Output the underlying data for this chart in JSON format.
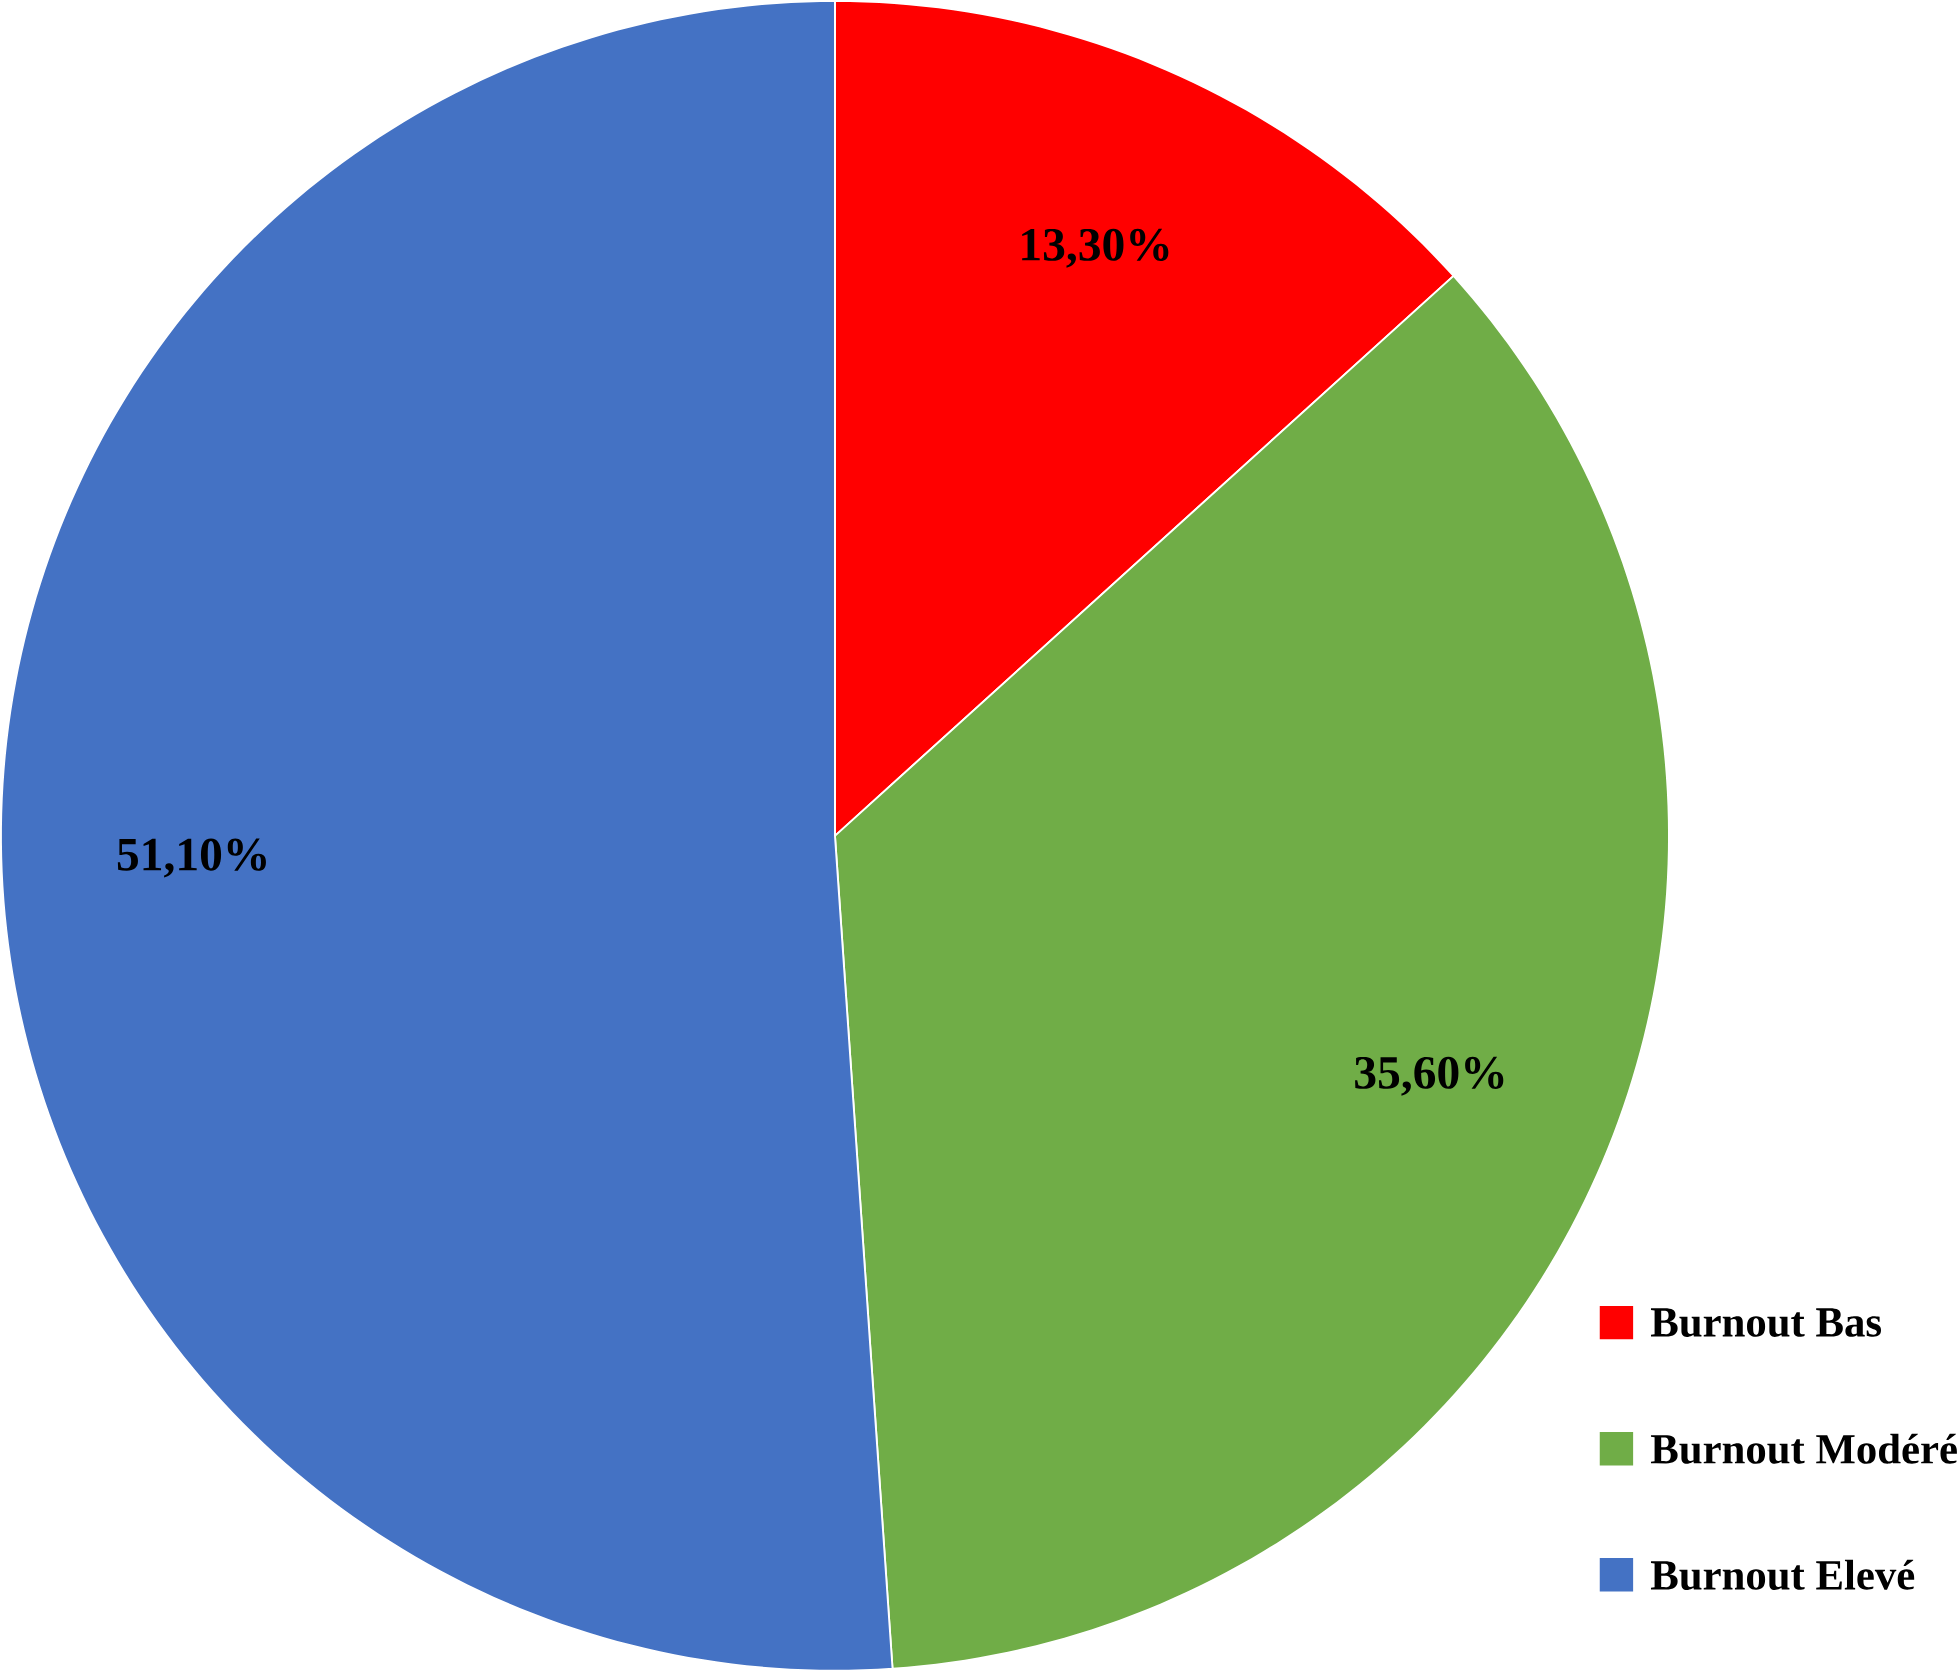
{
  "chart_data": {
    "type": "pie",
    "categories": [
      "Burnout Bas",
      "Burnout Modéré",
      "Burnout Elevé"
    ],
    "values": [
      13.3,
      35.6,
      51.1
    ],
    "colors": [
      "#ff0000",
      "#70ad47",
      "#4472c4"
    ],
    "value_labels": [
      "13,30%",
      "35,60%",
      "51,10%"
    ],
    "legend": "bottom right"
  }
}
